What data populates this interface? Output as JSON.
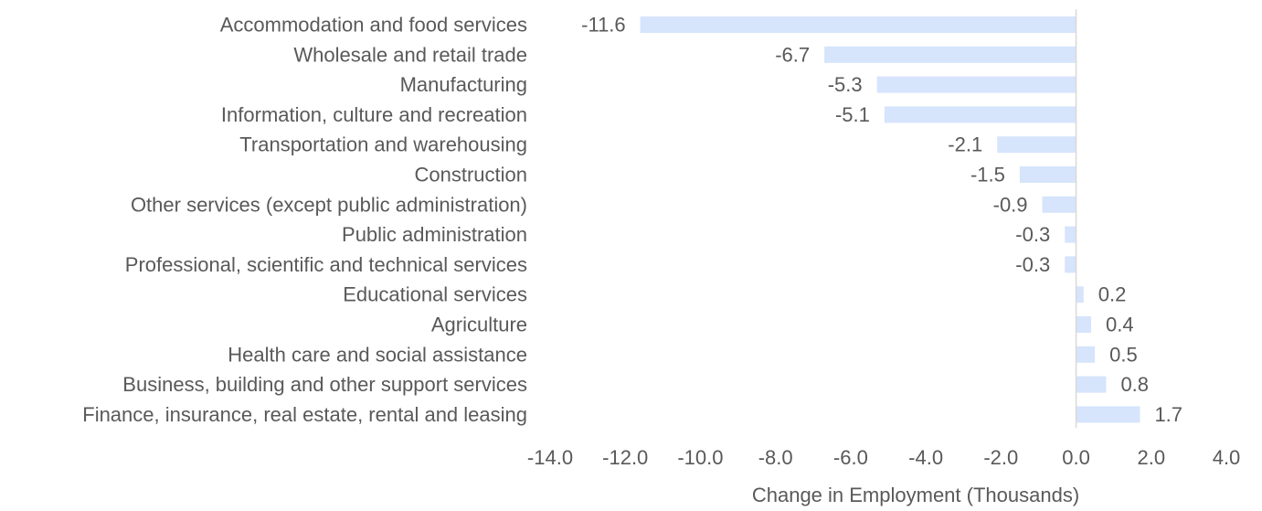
{
  "chart_data": {
    "type": "bar",
    "orientation": "horizontal",
    "title": "",
    "xlabel": "Change in Employment (Thousands)",
    "ylabel": "",
    "categories": [
      "Accommodation and food services",
      "Wholesale and retail trade",
      "Manufacturing",
      "Information, culture and recreation",
      "Transportation and warehousing",
      "Construction",
      "Other services (except public administration)",
      "Public administration",
      "Professional, scientific and technical services",
      "Educational services",
      "Agriculture",
      "Health care and social assistance",
      "Business, building and other support services",
      "Finance, insurance, real estate, rental and leasing"
    ],
    "values": [
      -11.6,
      -6.7,
      -5.3,
      -5.1,
      -2.1,
      -1.5,
      -0.9,
      -0.3,
      -0.3,
      0.2,
      0.4,
      0.5,
      0.8,
      1.7
    ],
    "value_labels": [
      "-11.6",
      "-6.7",
      "-5.3",
      "-5.1",
      "-2.1",
      "-1.5",
      "-0.9",
      "-0.3",
      "-0.3",
      "0.2",
      "0.4",
      "0.5",
      "0.8",
      "1.7"
    ],
    "xlim": [
      -14,
      4
    ],
    "xticks": [
      -14,
      -12,
      -10,
      -8,
      -6,
      -4,
      -2,
      0,
      2,
      4
    ],
    "xtick_labels": [
      "-14.0",
      "-12.0",
      "-10.0",
      "-8.0",
      "-6.0",
      "-4.0",
      "-2.0",
      "0.0",
      "2.0",
      "4.0"
    ],
    "grid": false,
    "legend": "none",
    "colors": {
      "bar": "#d6e4fc",
      "text": "#595959",
      "zero_line": "#d9d9d9"
    }
  }
}
